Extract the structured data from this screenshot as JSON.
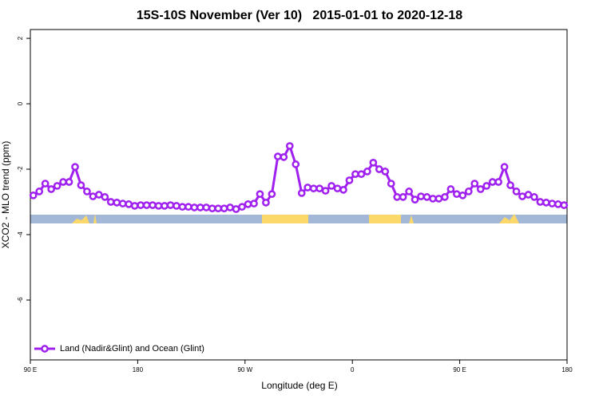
{
  "chart_data": {
    "type": "line",
    "title": "15S-10S November (Ver 10)   2015-01-01 to 2020-12-18",
    "x_label": "Longitude (deg E)",
    "y_label": "XCO2 - MLO trend (ppm)",
    "x": [
      92.5,
      97.5,
      102.5,
      107.5,
      112.5,
      117.5,
      122.5,
      127.5,
      132.5,
      137.5,
      142.5,
      147.5,
      152.5,
      157.5,
      162.5,
      167.5,
      172.5,
      177.5,
      182.5,
      187.5,
      192.5,
      197.5,
      202.5,
      207.5,
      212.5,
      217.5,
      222.5,
      227.5,
      232.5,
      237.5,
      242.5,
      247.5,
      252.5,
      257.5,
      262.5,
      267.5,
      272.5,
      277.5,
      282.5,
      287.5,
      292.5,
      297.5,
      302.5,
      307.5,
      312.5,
      317.5,
      322.5,
      327.5,
      332.5,
      337.5,
      342.5,
      347.5,
      352.5,
      357.5,
      362.5,
      367.5,
      372.5,
      377.5,
      382.5,
      387.5,
      392.5,
      397.5,
      402.5,
      407.5,
      412.5,
      417.5,
      422.5,
      427.5,
      432.5,
      437.5,
      442.5,
      447.5,
      452.5,
      457.5,
      462.5,
      467.5,
      472.5,
      477.5,
      482.5,
      487.5,
      492.5,
      497.5,
      502.5,
      507.5,
      512.5,
      517.5,
      522.5,
      527.5,
      532.5,
      537.5
    ],
    "series": [
      {
        "name": "Land (Nadir&Glint) and Ocean (Glint)",
        "color": "#a020f0",
        "values": [
          -2.8,
          -2.68,
          -2.44,
          -2.61,
          -2.51,
          -2.39,
          -2.39,
          -1.93,
          -2.49,
          -2.68,
          -2.83,
          -2.78,
          -2.85,
          -3.0,
          -3.02,
          -3.05,
          -3.07,
          -3.12,
          -3.1,
          -3.1,
          -3.1,
          -3.12,
          -3.12,
          -3.1,
          -3.12,
          -3.15,
          -3.15,
          -3.17,
          -3.17,
          -3.17,
          -3.2,
          -3.2,
          -3.2,
          -3.17,
          -3.22,
          -3.15,
          -3.07,
          -3.05,
          -2.76,
          -3.02,
          -2.76,
          -1.61,
          -1.63,
          -1.29,
          -1.85,
          -2.73,
          -2.56,
          -2.59,
          -2.59,
          -2.66,
          -2.51,
          -2.59,
          -2.63,
          -2.34,
          -2.15,
          -2.15,
          -2.07,
          -1.8,
          -2.0,
          -2.07,
          -2.44,
          -2.85,
          -2.85,
          -2.68,
          -2.93,
          -2.83,
          -2.85,
          -2.9,
          -2.9,
          -2.85,
          -2.61,
          -2.76,
          -2.8,
          -2.68,
          -2.44,
          -2.61,
          -2.51,
          -2.39,
          -2.39,
          -1.93,
          -2.49,
          -2.68,
          -2.83,
          -2.78,
          -2.85,
          -3.0,
          -3.02,
          -3.05,
          -3.07,
          -3.1
        ]
      }
    ],
    "xlim": [
      90,
      540
    ],
    "xticks": [
      {
        "value": 90,
        "label": "90 E"
      },
      {
        "value": 180,
        "label": "180"
      },
      {
        "value": 270,
        "label": "90 W"
      },
      {
        "value": 360,
        "label": "0"
      },
      {
        "value": 450,
        "label": "90 E"
      },
      {
        "value": 540,
        "label": "180"
      }
    ],
    "ylim": [
      -7.83,
      2.27
    ],
    "yticks": [
      2,
      0,
      -2,
      -4,
      -6
    ],
    "legend": "bottom-left"
  }
}
